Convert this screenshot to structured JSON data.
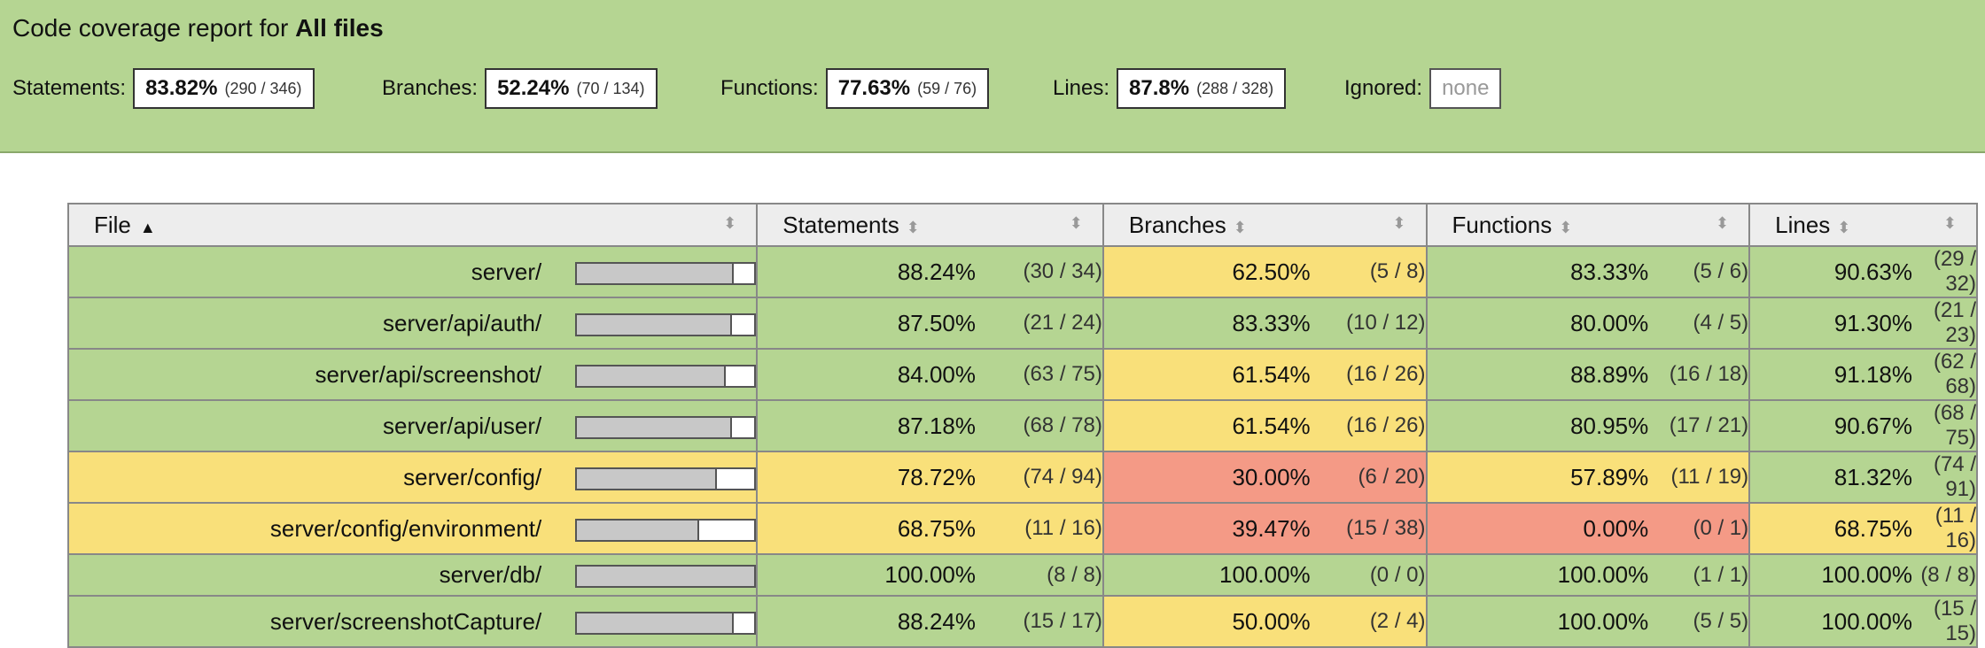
{
  "header": {
    "title_prefix": "Code coverage report for ",
    "title_bold": "All files",
    "metrics": [
      {
        "label": "Statements:",
        "pct": "83.82%",
        "frac": "(290 / 346)"
      },
      {
        "label": "Branches:",
        "pct": "52.24%",
        "frac": "(70 / 134)"
      },
      {
        "label": "Functions:",
        "pct": "77.63%",
        "frac": "(59 / 76)"
      },
      {
        "label": "Lines:",
        "pct": "87.8%",
        "frac": "(288 / 328)"
      }
    ],
    "ignored_label": "Ignored:",
    "ignored_value": "none"
  },
  "table": {
    "columns": [
      "File",
      "Statements",
      "Branches",
      "Functions",
      "Lines"
    ],
    "sort_active_glyph": "▲",
    "sort_glyph": "⬍",
    "rows": [
      {
        "file": "server/",
        "bar": 0.8824,
        "row": "high",
        "stmts": [
          "88.24%",
          "(30 / 34)",
          "high"
        ],
        "branches": [
          "62.50%",
          "(5 / 8)",
          "medium"
        ],
        "funcs": [
          "83.33%",
          "(5 / 6)",
          "high"
        ],
        "lines": [
          "90.63%",
          "(29 / 32)",
          "high"
        ]
      },
      {
        "file": "server/api/auth/",
        "bar": 0.875,
        "row": "high",
        "stmts": [
          "87.50%",
          "(21 / 24)",
          "high"
        ],
        "branches": [
          "83.33%",
          "(10 / 12)",
          "high"
        ],
        "funcs": [
          "80.00%",
          "(4 / 5)",
          "high"
        ],
        "lines": [
          "91.30%",
          "(21 / 23)",
          "high"
        ]
      },
      {
        "file": "server/api/screenshot/",
        "bar": 0.84,
        "row": "high",
        "stmts": [
          "84.00%",
          "(63 / 75)",
          "high"
        ],
        "branches": [
          "61.54%",
          "(16 / 26)",
          "medium"
        ],
        "funcs": [
          "88.89%",
          "(16 / 18)",
          "high"
        ],
        "lines": [
          "91.18%",
          "(62 / 68)",
          "high"
        ]
      },
      {
        "file": "server/api/user/",
        "bar": 0.8718,
        "row": "high",
        "stmts": [
          "87.18%",
          "(68 / 78)",
          "high"
        ],
        "branches": [
          "61.54%",
          "(16 / 26)",
          "medium"
        ],
        "funcs": [
          "80.95%",
          "(17 / 21)",
          "high"
        ],
        "lines": [
          "90.67%",
          "(68 / 75)",
          "high"
        ]
      },
      {
        "file": "server/config/",
        "bar": 0.7872,
        "row": "medium",
        "stmts": [
          "78.72%",
          "(74 / 94)",
          "medium"
        ],
        "branches": [
          "30.00%",
          "(6 / 20)",
          "low"
        ],
        "funcs": [
          "57.89%",
          "(11 / 19)",
          "medium"
        ],
        "lines": [
          "81.32%",
          "(74 / 91)",
          "high"
        ]
      },
      {
        "file": "server/config/environment/",
        "bar": 0.6875,
        "row": "medium",
        "stmts": [
          "68.75%",
          "(11 / 16)",
          "medium"
        ],
        "branches": [
          "39.47%",
          "(15 / 38)",
          "low"
        ],
        "funcs": [
          "0.00%",
          "(0 / 1)",
          "low"
        ],
        "lines": [
          "68.75%",
          "(11 / 16)",
          "medium"
        ]
      },
      {
        "file": "server/db/",
        "bar": 1.0,
        "row": "high",
        "stmts": [
          "100.00%",
          "(8 / 8)",
          "high"
        ],
        "branches": [
          "100.00%",
          "(0 / 0)",
          "high"
        ],
        "funcs": [
          "100.00%",
          "(1 / 1)",
          "high"
        ],
        "lines": [
          "100.00%",
          "(8 / 8)",
          "high"
        ]
      },
      {
        "file": "server/screenshotCapture/",
        "bar": 0.8824,
        "row": "high",
        "stmts": [
          "88.24%",
          "(15 / 17)",
          "high"
        ],
        "branches": [
          "50.00%",
          "(2 / 4)",
          "medium"
        ],
        "funcs": [
          "100.00%",
          "(5 / 5)",
          "high"
        ],
        "lines": [
          "100.00%",
          "(15 / 15)",
          "high"
        ]
      }
    ]
  },
  "colors": {
    "high": "#b5d592",
    "medium": "#f9e07a",
    "low": "#f49a86"
  }
}
